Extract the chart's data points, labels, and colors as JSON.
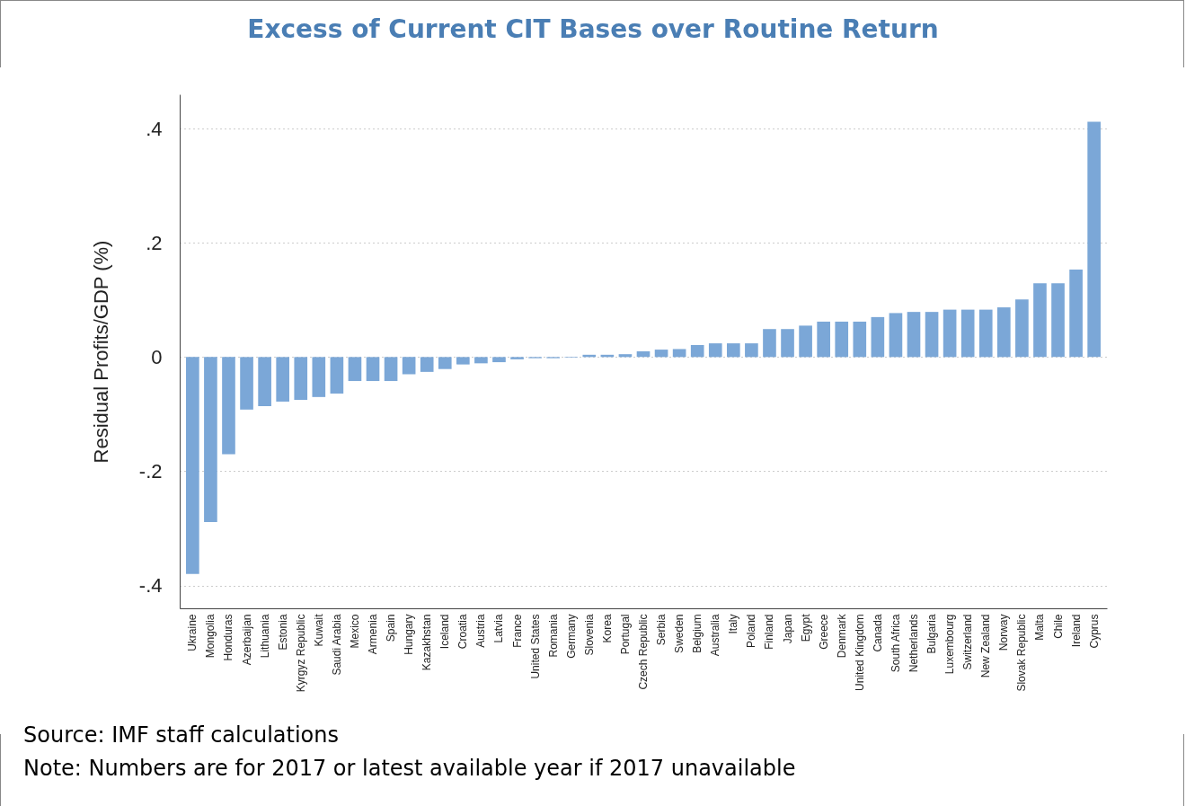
{
  "chart_data": {
    "type": "bar",
    "title": "Excess of Current CIT Bases over Routine Return",
    "ylabel": "Residual Profits/GDP (%)",
    "categories": [
      "Ukraine",
      "Mongolia",
      "Honduras",
      "Azerbaijan",
      "Lithuania",
      "Estonia",
      "Kyrgyz Republic",
      "Kuwait",
      "Saudi Arabia",
      "Mexico",
      "Armenia",
      "Spain",
      "Hungary",
      "Kazakhstan",
      "Iceland",
      "Croatia",
      "Austria",
      "Latvia",
      "France",
      "United States",
      "Romania",
      "Germany",
      "Slovenia",
      "Korea",
      "Portugal",
      "Czech Republic",
      "Serbia",
      "Sweden",
      "Belgium",
      "Australia",
      "Italy",
      "Poland",
      "Finland",
      "Japan",
      "Egypt",
      "Greece",
      "Denmark",
      "United Kingdom",
      "Canada",
      "South Africa",
      "Netherlands",
      "Bulgaria",
      "Luxembourg",
      "Switzerland",
      "New Zealand",
      "Norway",
      "Slovak Republic",
      "Malta",
      "Chile",
      "Ireland",
      "Cyprus"
    ],
    "values": [
      -0.38,
      -0.289,
      -0.17,
      -0.092,
      -0.086,
      -0.078,
      -0.075,
      -0.07,
      -0.064,
      -0.042,
      -0.042,
      -0.042,
      -0.03,
      -0.026,
      -0.021,
      -0.013,
      -0.011,
      -0.009,
      -0.004,
      -0.002,
      -0.002,
      -0.001,
      0.004,
      0.004,
      0.005,
      0.01,
      0.013,
      0.014,
      0.021,
      0.024,
      0.024,
      0.024,
      0.049,
      0.049,
      0.055,
      0.062,
      0.062,
      0.062,
      0.07,
      0.077,
      0.079,
      0.079,
      0.083,
      0.083,
      0.083,
      0.087,
      0.101,
      0.129,
      0.129,
      0.153,
      0.412
    ],
    "color": "#7ba7d7",
    "ylim": [
      -0.44,
      0.46
    ],
    "yticks": [
      {
        "value": -0.4,
        "label": "-.4"
      },
      {
        "value": -0.2,
        "label": "-.2"
      },
      0,
      {
        "value": 0.2,
        "label": ".2"
      },
      {
        "value": 0.4,
        "label": ".4"
      }
    ],
    "grid": "y",
    "annotations": [
      "Source: IMF staff calculations",
      "Note: Numbers are for 2017 or latest available year if 2017 unavailable"
    ]
  }
}
